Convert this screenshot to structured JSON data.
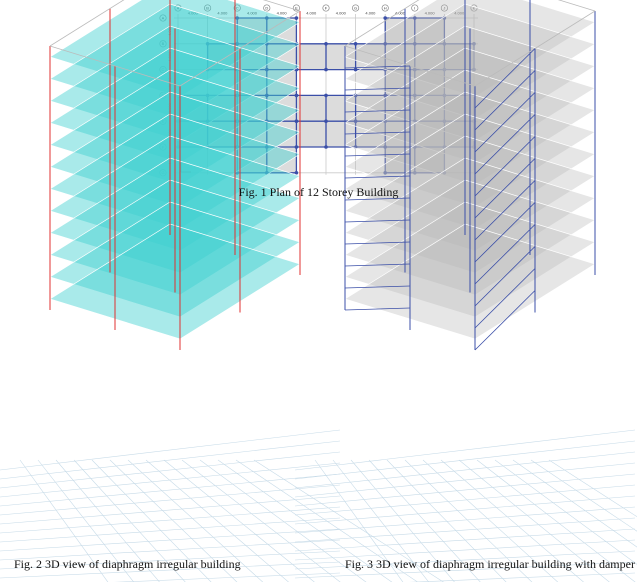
{
  "figures": [
    {
      "caption": "Fig. 1  Plan of 12 Storey Building",
      "grid_cols": [
        "A",
        "B",
        "C",
        "D",
        "E",
        "F",
        "G",
        "H",
        "I",
        "J",
        "K"
      ],
      "grid_rows": [
        "A",
        "B",
        "C",
        "D",
        "E",
        "F",
        "G"
      ],
      "bay_width_label": "4.000",
      "bay_height_label": "4.000",
      "slab_color": "#dcdcdc",
      "beam_color": "#3b4fa8"
    },
    {
      "caption": "Fig. 2 3D view of diaphragm irregular building",
      "slab_color": "#40d0d0",
      "column_color": "#e03030"
    },
    {
      "caption": "Fig. 3 3D view of diaphragm irregular building with damper",
      "slab_color": "#b8b8b8",
      "column_color": "#3b4fa8"
    }
  ]
}
